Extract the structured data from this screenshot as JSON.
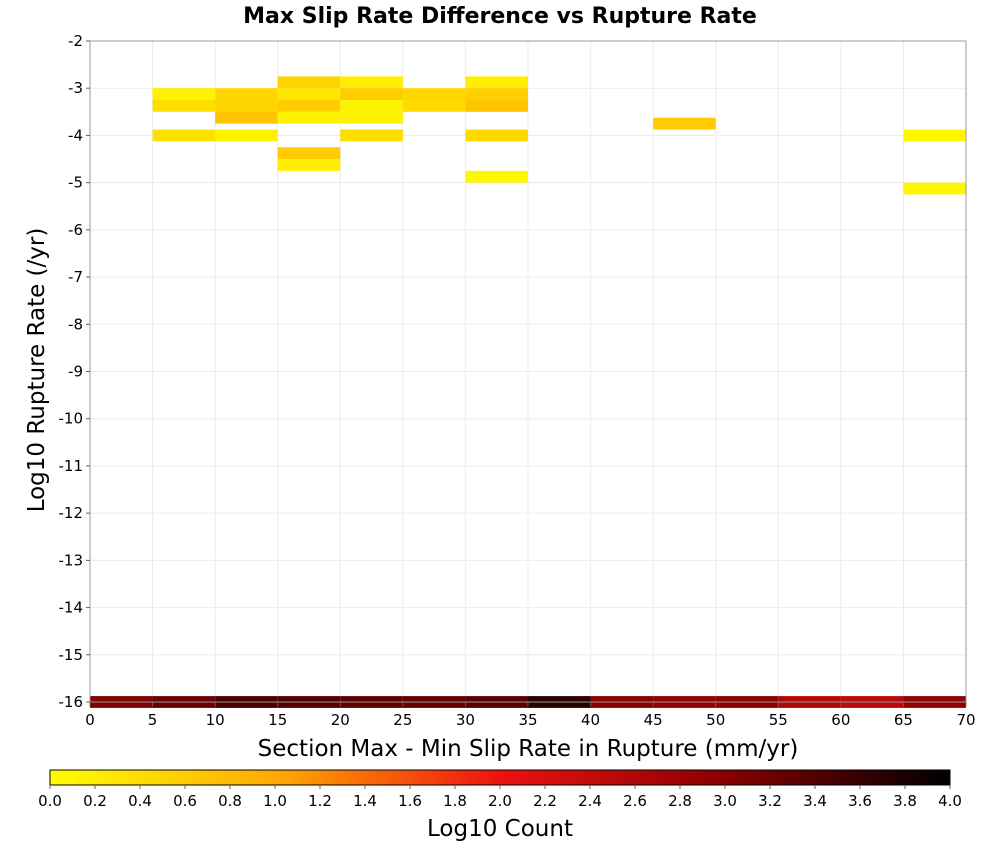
{
  "chart_data": {
    "type": "heatmap",
    "title": "Max Slip Rate Difference vs Rupture Rate",
    "xlabel": "Section Max - Min Slip Rate in Rupture (mm/yr)",
    "ylabel": "Log10 Rupture Rate (/yr)",
    "xlim": [
      0,
      70
    ],
    "ylim": [
      -16,
      -2
    ],
    "x_bin_width": 5,
    "y_bin_height": 0.25,
    "xticks": [
      "0",
      "5",
      "10",
      "15",
      "20",
      "25",
      "30",
      "35",
      "40",
      "45",
      "50",
      "55",
      "60",
      "65",
      "70"
    ],
    "yticks": [
      "-2",
      "-3",
      "-4",
      "-5",
      "-6",
      "-7",
      "-8",
      "-9",
      "-10",
      "-11",
      "-12",
      "-13",
      "-14",
      "-15",
      "-16"
    ],
    "grid": true,
    "colorbar": {
      "label": "Log10 Count",
      "range": [
        0,
        4
      ],
      "ticks": [
        "0.0",
        "0.2",
        "0.4",
        "0.6",
        "0.8",
        "1.0",
        "1.2",
        "1.4",
        "1.6",
        "1.8",
        "2.0",
        "2.2",
        "2.4",
        "2.6",
        "2.8",
        "3.0",
        "3.2",
        "3.4",
        "3.6",
        "3.8",
        "4.0"
      ],
      "stops": [
        {
          "value": 0.0,
          "color": "#ffff00"
        },
        {
          "value": 1.0,
          "color": "#ffaa00"
        },
        {
          "value": 2.0,
          "color": "#ee1111"
        },
        {
          "value": 3.0,
          "color": "#880000"
        },
        {
          "value": 4.0,
          "color": "#000000"
        }
      ]
    },
    "cells": [
      {
        "x": 7.5,
        "y": -3.125,
        "v": 0.15
      },
      {
        "x": 7.5,
        "y": -3.375,
        "v": 0.4
      },
      {
        "x": 7.5,
        "y": -4.0,
        "v": 0.35
      },
      {
        "x": 12.5,
        "y": -3.125,
        "v": 0.5
      },
      {
        "x": 12.5,
        "y": -3.375,
        "v": 0.5
      },
      {
        "x": 12.5,
        "y": -3.625,
        "v": 0.7
      },
      {
        "x": 12.5,
        "y": -4.0,
        "v": 0.15
      },
      {
        "x": 17.5,
        "y": -2.875,
        "v": 0.5
      },
      {
        "x": 17.5,
        "y": -3.125,
        "v": 0.3
      },
      {
        "x": 17.5,
        "y": -3.375,
        "v": 0.6
      },
      {
        "x": 17.5,
        "y": -3.625,
        "v": 0.15
      },
      {
        "x": 17.5,
        "y": -4.375,
        "v": 0.6
      },
      {
        "x": 17.5,
        "y": -4.625,
        "v": 0.2
      },
      {
        "x": 22.5,
        "y": -2.875,
        "v": 0.2
      },
      {
        "x": 22.5,
        "y": -3.125,
        "v": 0.6
      },
      {
        "x": 22.5,
        "y": -3.375,
        "v": 0.15
      },
      {
        "x": 22.5,
        "y": -3.625,
        "v": 0.15
      },
      {
        "x": 22.5,
        "y": -4.0,
        "v": 0.4
      },
      {
        "x": 27.5,
        "y": -3.125,
        "v": 0.5
      },
      {
        "x": 27.5,
        "y": -3.375,
        "v": 0.45
      },
      {
        "x": 32.5,
        "y": -2.875,
        "v": 0.2
      },
      {
        "x": 32.5,
        "y": -3.125,
        "v": 0.55
      },
      {
        "x": 32.5,
        "y": -3.375,
        "v": 0.7
      },
      {
        "x": 32.5,
        "y": -4.0,
        "v": 0.45
      },
      {
        "x": 32.5,
        "y": -4.875,
        "v": 0.1
      },
      {
        "x": 47.5,
        "y": -3.75,
        "v": 0.6
      },
      {
        "x": 67.5,
        "y": -4.0,
        "v": 0.1
      },
      {
        "x": 67.5,
        "y": -5.125,
        "v": 0.1
      },
      {
        "x": 2.5,
        "y": -16.0,
        "v": 3.05
      },
      {
        "x": 7.5,
        "y": -16.0,
        "v": 3.2
      },
      {
        "x": 12.5,
        "y": -16.0,
        "v": 3.45
      },
      {
        "x": 17.5,
        "y": -16.0,
        "v": 3.4
      },
      {
        "x": 22.5,
        "y": -16.0,
        "v": 3.3
      },
      {
        "x": 27.5,
        "y": -16.0,
        "v": 3.25
      },
      {
        "x": 32.5,
        "y": -16.0,
        "v": 3.35
      },
      {
        "x": 37.5,
        "y": -16.0,
        "v": 3.7
      },
      {
        "x": 42.5,
        "y": -16.0,
        "v": 3.0
      },
      {
        "x": 47.5,
        "y": -16.0,
        "v": 2.9
      },
      {
        "x": 52.5,
        "y": -16.0,
        "v": 2.95
      },
      {
        "x": 57.5,
        "y": -16.0,
        "v": 2.6
      },
      {
        "x": 62.5,
        "y": -16.0,
        "v": 2.5
      },
      {
        "x": 67.5,
        "y": -16.0,
        "v": 2.9
      }
    ]
  }
}
